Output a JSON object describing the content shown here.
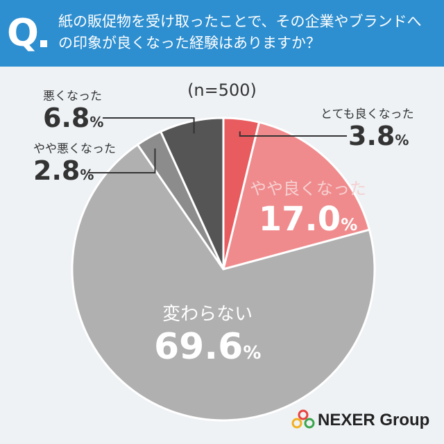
{
  "header": {
    "q_mark": "Q",
    "question": "紙の販促物を受け取ったことで、その企業やブランドへの印象が良くなった経験はありますか？",
    "bg_color": "#2e8fd0"
  },
  "sample_size": "(n=500)",
  "chart_data": {
    "type": "pie",
    "title": "",
    "slices": [
      {
        "label": "とても良くなった",
        "value": 3.8,
        "display": "3.8",
        "color": "#e85b5e"
      },
      {
        "label": "やや良くなった",
        "value": 17.0,
        "display": "17.0",
        "color": "#f08b8d"
      },
      {
        "label": "変わらない",
        "value": 69.6,
        "display": "69.6",
        "color": "#b0b0b0"
      },
      {
        "label": "やや悪くなった",
        "value": 2.8,
        "display": "2.8",
        "color": "#8c8c8c"
      },
      {
        "label": "悪くなった",
        "value": 6.8,
        "display": "6.8",
        "color": "#555555"
      }
    ],
    "unit": "%",
    "start": "12 o'clock",
    "direction": "clockwise"
  },
  "logo": {
    "text": "NEXER Group"
  }
}
